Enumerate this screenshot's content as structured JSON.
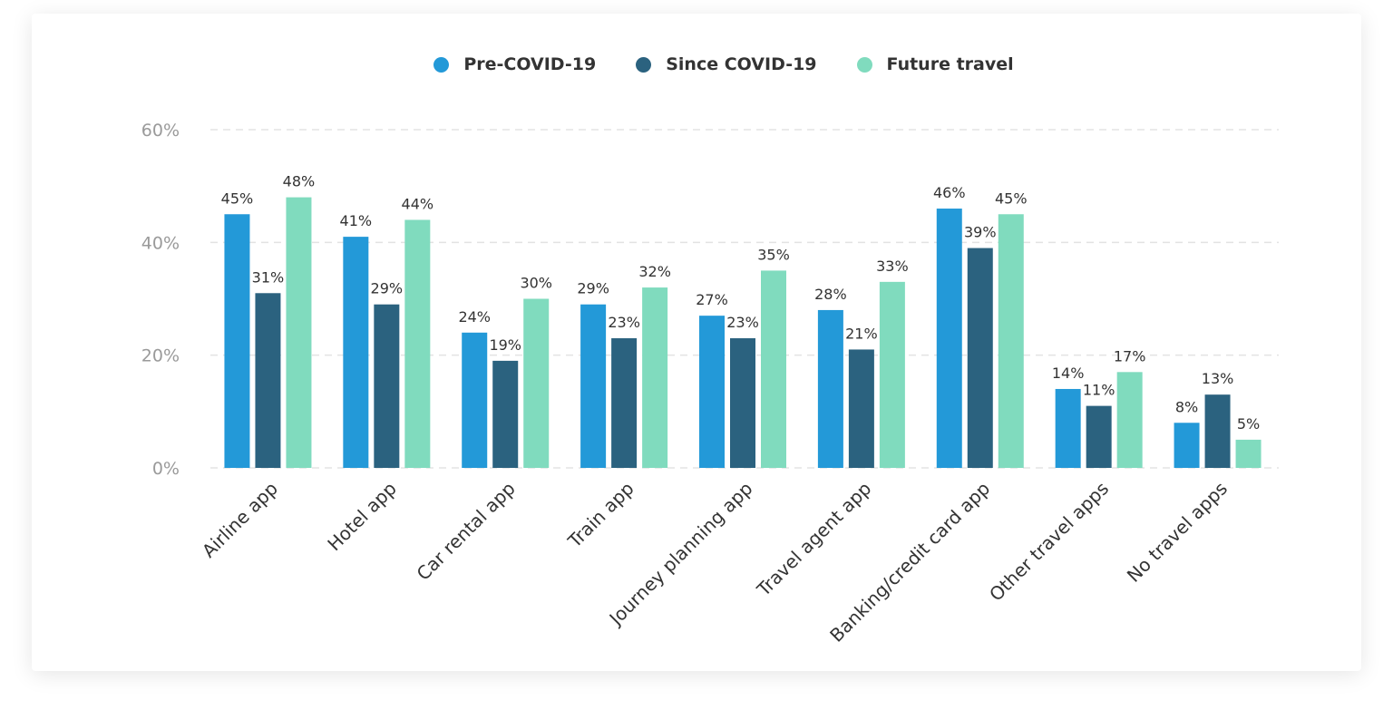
{
  "chart_data": {
    "type": "bar",
    "title": "",
    "xlabel": "",
    "ylabel": "",
    "ylim": [
      0,
      60
    ],
    "yticks": [
      "0%",
      "20%",
      "40%",
      "60%"
    ],
    "ytick_values": [
      0,
      20,
      40,
      60
    ],
    "grid": true,
    "legend_placement": "top-center",
    "categories": [
      "Airline app",
      "Hotel app",
      "Car rental app",
      "Train app",
      "Journey planning app",
      "Travel agent app",
      "Banking/credit card app",
      "Other travel apps",
      "No travel apps"
    ],
    "series": [
      {
        "name": "Pre-COVID-19",
        "color": "#2399D8",
        "values": [
          45,
          41,
          24,
          29,
          27,
          28,
          46,
          14,
          8
        ]
      },
      {
        "name": "Since COVID-19",
        "color": "#2B627F",
        "values": [
          31,
          29,
          19,
          23,
          23,
          21,
          39,
          11,
          13
        ]
      },
      {
        "name": "Future travel",
        "color": "#80DBBE",
        "values": [
          48,
          44,
          30,
          32,
          35,
          33,
          45,
          17,
          5
        ]
      }
    ]
  }
}
